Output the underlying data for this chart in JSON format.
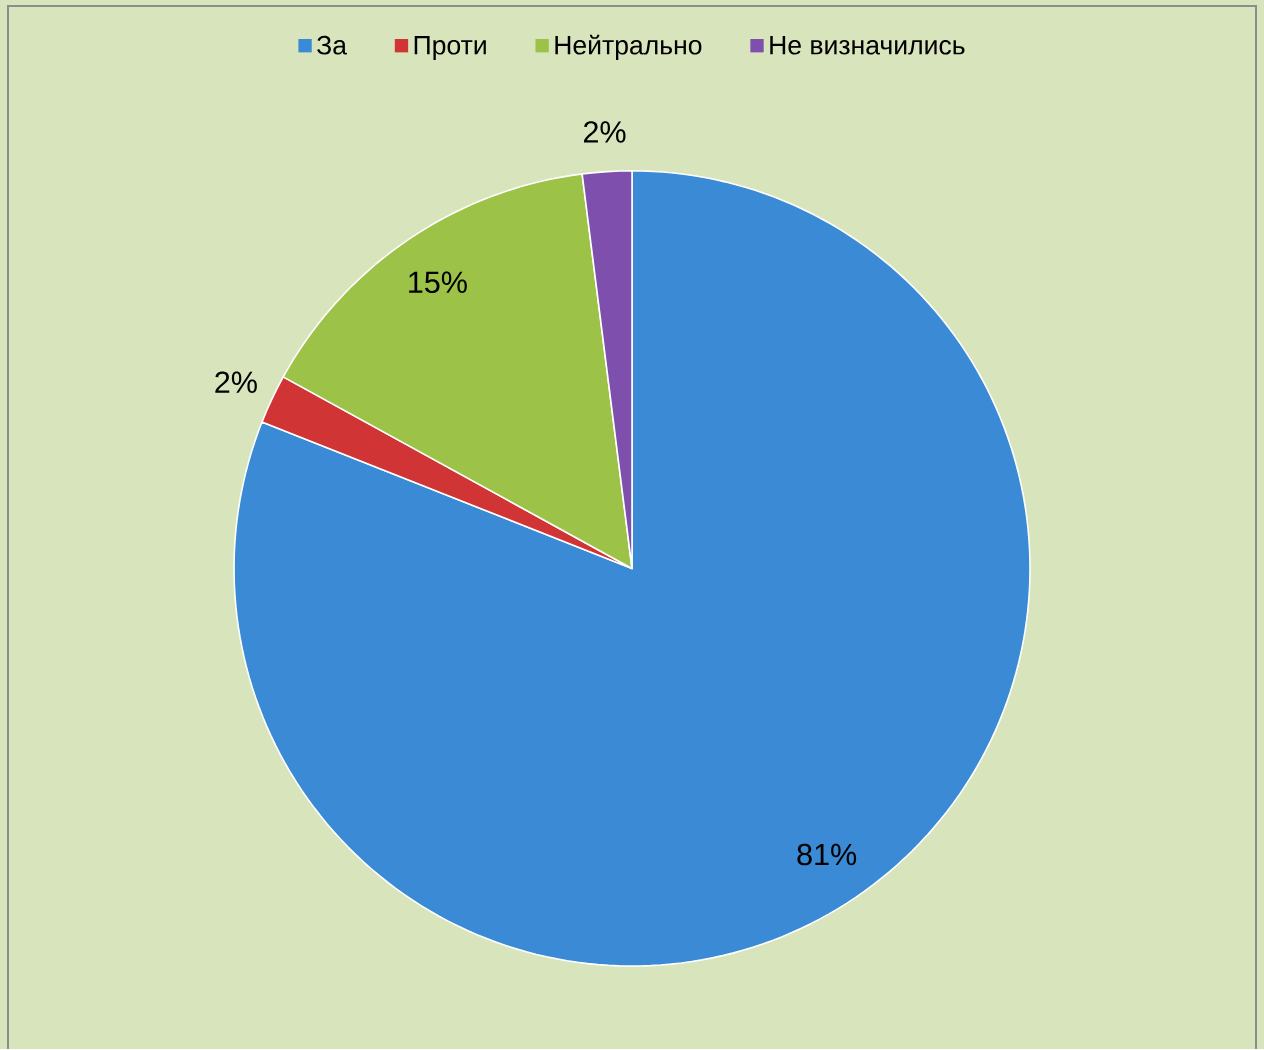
{
  "chart_data": {
    "type": "pie",
    "categories": [
      "За",
      "Проти",
      "Нейтрально",
      "Не визначились"
    ],
    "values": [
      81,
      2,
      15,
      2
    ],
    "colors": [
      "#3a8ad6",
      "#d03434",
      "#9cc247",
      "#7f4fae"
    ],
    "value_labels": [
      "81%",
      "2%",
      "15%",
      "2%"
    ],
    "legend": "top"
  }
}
